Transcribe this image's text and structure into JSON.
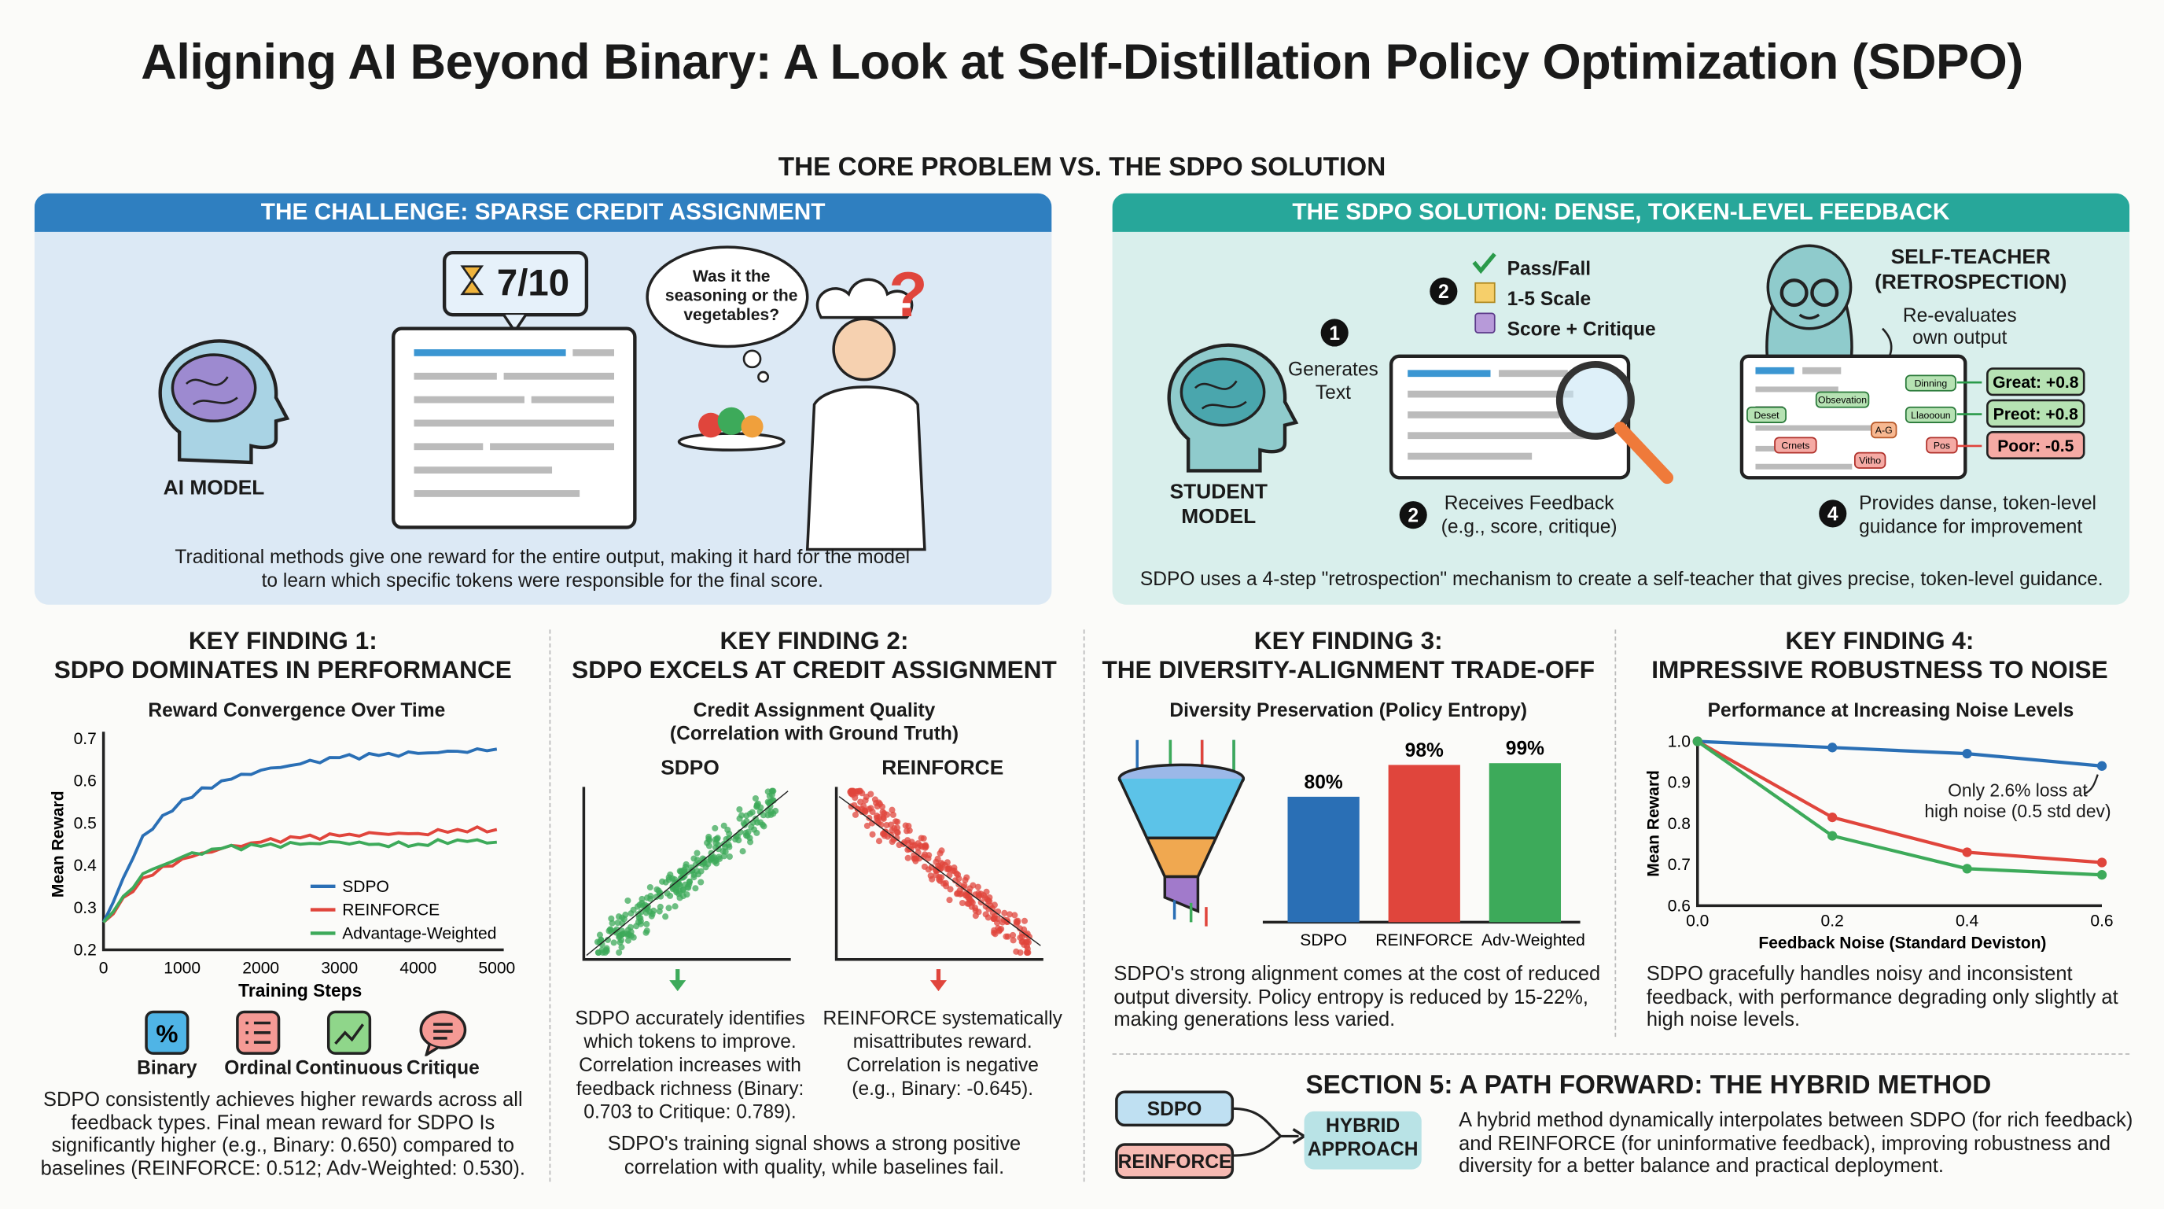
{
  "title": "Aligning AI Beyond Binary: A Look at Self-Distillation Policy Optimization (SDPO)",
  "subtitle": "THE CORE PROBLEM VS. THE SDPO SOLUTION",
  "challenge": {
    "header": "THE CHALLENGE: SPARSE CREDIT ASSIGNMENT",
    "score": "7/10",
    "thought": "Was it the seasoning or the vegetables?",
    "question": "?",
    "model_label": "AI MODEL",
    "caption_1": "Traditional methods give one reward for the entire output, making it hard for the model",
    "caption_2": "to learn which specific tokens were responsible for the final score."
  },
  "solution": {
    "header": "THE SDPO SOLUTION: DENSE, TOKEN-LEVEL FEEDBACK",
    "student_1": "STUDENT",
    "student_2": "MODEL",
    "step1_num": "1",
    "step1_1": "Generates",
    "step1_2": "Text",
    "step2_num": "2",
    "feedback_types": [
      "Pass/Fall",
      "1-5 Scale",
      "Score + Critique"
    ],
    "step2b_num": "2",
    "step2_1": "Receives Feedback",
    "step2_2": "(e.g., score, critique)",
    "teacher_1": "SELF-TEACHER",
    "teacher_2": "(RETROSPECTION)",
    "reeval_1": "Re-evaluates",
    "reeval_2": "own output",
    "tokens": [
      "Dinning",
      "Obsevation",
      "Deset",
      "Llaoooun",
      "A-G",
      "Crnets",
      "Pos",
      "Vitho"
    ],
    "scores": [
      "Great: +0.8",
      "Preot: +0.8",
      "Poor: -0.5"
    ],
    "step4_num": "4",
    "step4_1": "Provides danse, token-level",
    "step4_2": "guidance for improvement",
    "caption": "SDPO uses a 4-step \"retrospection\" mechanism to create a self-teacher that gives precise, token-level guidance."
  },
  "finding1": {
    "h1": "KEY FINDING 1:",
    "h2": "SDPO DOMINATES IN PERFORMANCE",
    "icons": [
      "Binary",
      "Ordinal",
      "Continuous",
      "Critique"
    ],
    "para": [
      "SDPO consistently achieves higher rewards across all",
      "feedback types. Final mean reward for SDPO Is",
      "significantly higher (e.g., Binary: 0.650) compared to",
      "baselines (REINFORCE: 0.512; Adv-Weighted: 0.530)."
    ]
  },
  "finding2": {
    "h1": "KEY FINDING 2:",
    "h2": "SDPO EXCELS AT CREDIT ASSIGNMENT",
    "ct1": "Credit Assignment Quality",
    "ct2": "(Correlation with Ground Truth)",
    "sdpo_cap": [
      "SDPO accurately identifies",
      "which tokens to improve.",
      "Correlation increases with",
      "feedback richness (Binary:",
      "0.703 to Critique: 0.789)."
    ],
    "rein_cap": [
      "REINFORCE systematically",
      "misattributes reward.",
      "Correlation is negative",
      "(e.g., Binary: -0.645)."
    ],
    "footer": [
      "SDPO's training signal shows a strong positive",
      "correlation with quality, while baselines fail."
    ]
  },
  "finding3": {
    "h1": "KEY FINDING 3:",
    "h2": "THE DIVERSITY-ALIGNMENT TRADE-OFF",
    "para": [
      "SDPO's strong alignment comes at the cost of reduced",
      "output diversity. Policy entropy is reduced by 15-22%,",
      "making generations less varied."
    ]
  },
  "finding4": {
    "h1": "KEY FINDING 4:",
    "h2": "IMPRESSIVE ROBUSTNESS TO NOISE",
    "annot_1": "Only 2.6% loss at",
    "annot_2": "high noise (0.5 std dev)",
    "para": [
      "SDPO gracefully handles noisy and inconsistent",
      "feedback, with performance degrading only slightly at",
      "high noise levels."
    ]
  },
  "section5": {
    "title": "SECTION 5: A PATH FORWARD: THE HYBRID METHOD",
    "sdpo": "SDPO",
    "reinforce": "REINFORCE",
    "hybrid_1": "HYBRID",
    "hybrid_2": "APPROACH",
    "para": [
      "A hybrid method dynamically interpolates between SDPO (for rich feedback)",
      "and REINFORCE (for uninformative feedback), improving robustness and",
      "diversity for a better balance and practical deployment."
    ]
  },
  "colors": {
    "sdpo": "#2a6fb5",
    "reinforce": "#e0453c",
    "adv": "#3daa5a",
    "challenge": "#2f7fc0",
    "solution": "#27a79a"
  },
  "chart_data": [
    {
      "type": "line",
      "title": "Reward Convergence Over Time",
      "xlabel": "Training Steps",
      "ylabel": "Mean Reward",
      "xlim": [
        0,
        5000
      ],
      "ylim": [
        0.2,
        0.7
      ],
      "xticks": [
        0,
        1000,
        2000,
        3000,
        4000,
        5000
      ],
      "yticks": [
        0.2,
        0.3,
        0.4,
        0.5,
        0.6,
        0.7
      ],
      "legend": "bottom-right",
      "x": [
        0,
        500,
        1000,
        1500,
        2000,
        2500,
        3000,
        3500,
        4000,
        4500,
        5000
      ],
      "series": [
        {
          "name": "SDPO",
          "values": [
            0.265,
            0.47,
            0.555,
            0.6,
            0.625,
            0.64,
            0.655,
            0.66,
            0.665,
            0.67,
            0.675
          ]
        },
        {
          "name": "REINFORCE",
          "values": [
            0.265,
            0.37,
            0.415,
            0.44,
            0.455,
            0.465,
            0.47,
            0.475,
            0.475,
            0.485,
            0.485
          ]
        },
        {
          "name": "Advantage-Weighted",
          "values": [
            0.265,
            0.38,
            0.42,
            0.44,
            0.445,
            0.45,
            0.455,
            0.45,
            0.45,
            0.46,
            0.455
          ]
        }
      ]
    },
    {
      "type": "scatter",
      "title": "Credit Assignment Quality (Correlation with Ground Truth)",
      "series": [
        {
          "name": "SDPO",
          "trend": "positive"
        },
        {
          "name": "REINFORCE",
          "trend": "negative"
        }
      ]
    },
    {
      "type": "bar",
      "title": "Diversity Preservation (Policy Entropy)",
      "categories": [
        "SDPO",
        "REINFORCE",
        "Adv-Weighted"
      ],
      "values": [
        80,
        98,
        99
      ],
      "labels": [
        "80%",
        "98%",
        "99%"
      ]
    },
    {
      "type": "line",
      "title": "Performance at Increasing Noise Levels",
      "xlabel": "Feedback Noise (Standard Deviston)",
      "ylabel": "Mean Reward",
      "xlim": [
        0,
        0.6
      ],
      "ylim": [
        0.6,
        1.0
      ],
      "xticks": [
        "0.0",
        "0.2",
        "0.4",
        "0.6"
      ],
      "yticks": [
        "0.6",
        "0.7",
        "0.8",
        "0.9",
        "1.0"
      ],
      "x": [
        0,
        0.2,
        0.4,
        0.6
      ],
      "series": [
        {
          "name": "SDPO",
          "values": [
            1.0,
            0.985,
            0.97,
            0.94
          ]
        },
        {
          "name": "REINFORCE",
          "values": [
            1.0,
            0.815,
            0.73,
            0.705
          ]
        },
        {
          "name": "Advantage-Weighted",
          "values": [
            1.0,
            0.77,
            0.69,
            0.675
          ]
        }
      ]
    }
  ]
}
